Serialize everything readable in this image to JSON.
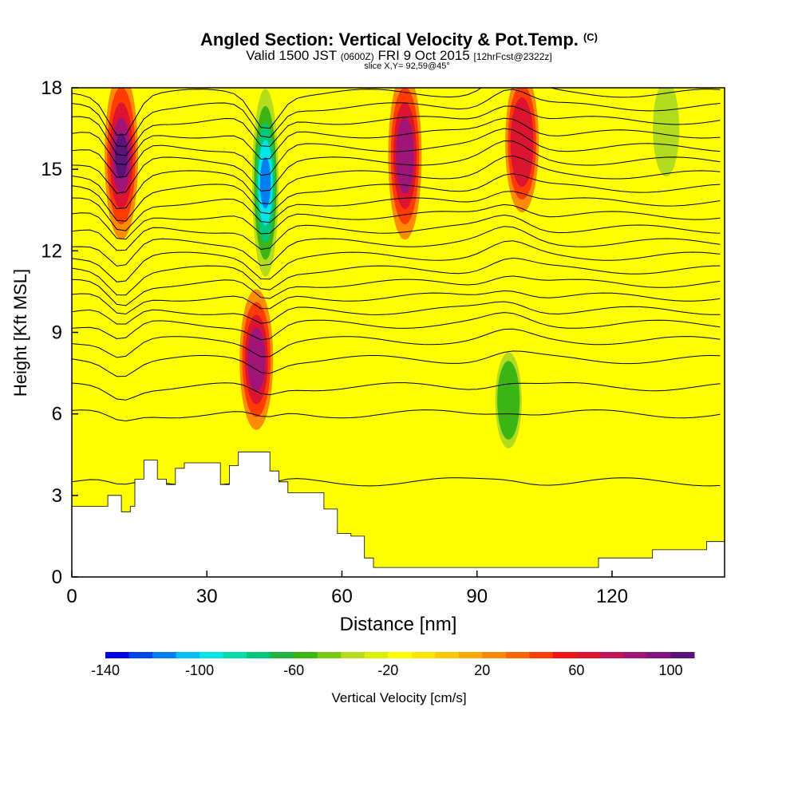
{
  "chart_data": {
    "type": "heatmap",
    "title": "Angled Section: Vertical Velocity & Pot.Temp.",
    "title_tag": "(C)",
    "subtitle_valid": "Valid 1500 JST",
    "subtitle_zulu": "(0600Z)",
    "subtitle_date": "FRI 9 Oct 2015",
    "subtitle_fcst": "[12hrFcst@2322z]",
    "slice_label": "slice X,Y= 92,59@45°",
    "xlabel": "Distance [nm]",
    "ylabel": "Height [Kft MSL]",
    "xlim": [
      0,
      145
    ],
    "ylim": [
      0,
      18
    ],
    "x_ticks": [
      0,
      30,
      60,
      90,
      120
    ],
    "y_ticks": [
      0,
      3,
      6,
      9,
      12,
      15,
      18
    ],
    "colorbar": {
      "label": "Vertical Velocity [cm/s]",
      "range": [
        -140,
        110
      ],
      "tick_values": [
        -140,
        -100,
        -60,
        -20,
        20,
        60,
        100
      ],
      "colors": [
        "#0000e6",
        "#0044ee",
        "#0080f0",
        "#00bff5",
        "#00e6e6",
        "#00dcaa",
        "#00c878",
        "#20b43c",
        "#3cb414",
        "#78c814",
        "#b4dc1e",
        "#dcf000",
        "#ffff00",
        "#ffe600",
        "#ffc800",
        "#ffaa00",
        "#ff8c00",
        "#ff6400",
        "#ff3c00",
        "#f01414",
        "#dc1432",
        "#be145a",
        "#a01478",
        "#821482",
        "#5a1478"
      ]
    },
    "terrain_kft": [
      [
        0,
        2.6
      ],
      [
        5,
        2.6
      ],
      [
        8,
        3.0
      ],
      [
        11,
        2.4
      ],
      [
        13,
        2.6
      ],
      [
        14,
        3.6
      ],
      [
        16,
        4.3
      ],
      [
        19,
        3.6
      ],
      [
        21,
        3.4
      ],
      [
        23,
        4.0
      ],
      [
        25,
        4.2
      ],
      [
        30,
        4.2
      ],
      [
        33,
        3.4
      ],
      [
        35,
        4.1
      ],
      [
        37,
        4.6
      ],
      [
        41,
        4.6
      ],
      [
        44,
        3.9
      ],
      [
        46,
        3.5
      ],
      [
        48,
        3.1
      ],
      [
        52,
        3.1
      ],
      [
        56,
        2.5
      ],
      [
        59,
        1.6
      ],
      [
        62,
        1.5
      ],
      [
        65,
        0.7
      ],
      [
        67,
        0.35
      ],
      [
        80,
        0.35
      ],
      [
        115,
        0.35
      ],
      [
        117,
        0.7
      ],
      [
        128,
        0.7
      ],
      [
        129,
        1.0
      ],
      [
        140,
        1.0
      ],
      [
        141,
        1.3
      ],
      [
        145,
        1.3
      ]
    ],
    "updrafts_cm_s": [
      {
        "x": 11,
        "top_kft": 18,
        "bottom_kft": 13,
        "peak": 100
      },
      {
        "x": 41,
        "top_kft": 10,
        "bottom_kft": 6,
        "peak": 80
      },
      {
        "x": 74,
        "top_kft": 18,
        "bottom_kft": 13,
        "peak": 90
      },
      {
        "x": 100,
        "top_kft": 18,
        "bottom_kft": 14,
        "peak": 70
      }
    ],
    "downdrafts_cm_s": [
      {
        "x": 43,
        "top_kft": 18,
        "bottom_kft": 11,
        "peak": -130
      },
      {
        "x": 97,
        "top_kft": 8,
        "bottom_kft": 5,
        "peak": -60
      },
      {
        "x": 132,
        "top_kft": 18,
        "bottom_kft": 15,
        "peak": -50
      }
    ],
    "theta_contour_base_kft": [
      3.5,
      6,
      7,
      8,
      8.7,
      9.3,
      9.8,
      10.3,
      10.8,
      11.3,
      11.8,
      12.3,
      12.8,
      13.3,
      13.8,
      14.3,
      14.8,
      15.3,
      15.8,
      16.3,
      16.8,
      17.3,
      17.8
    ]
  }
}
